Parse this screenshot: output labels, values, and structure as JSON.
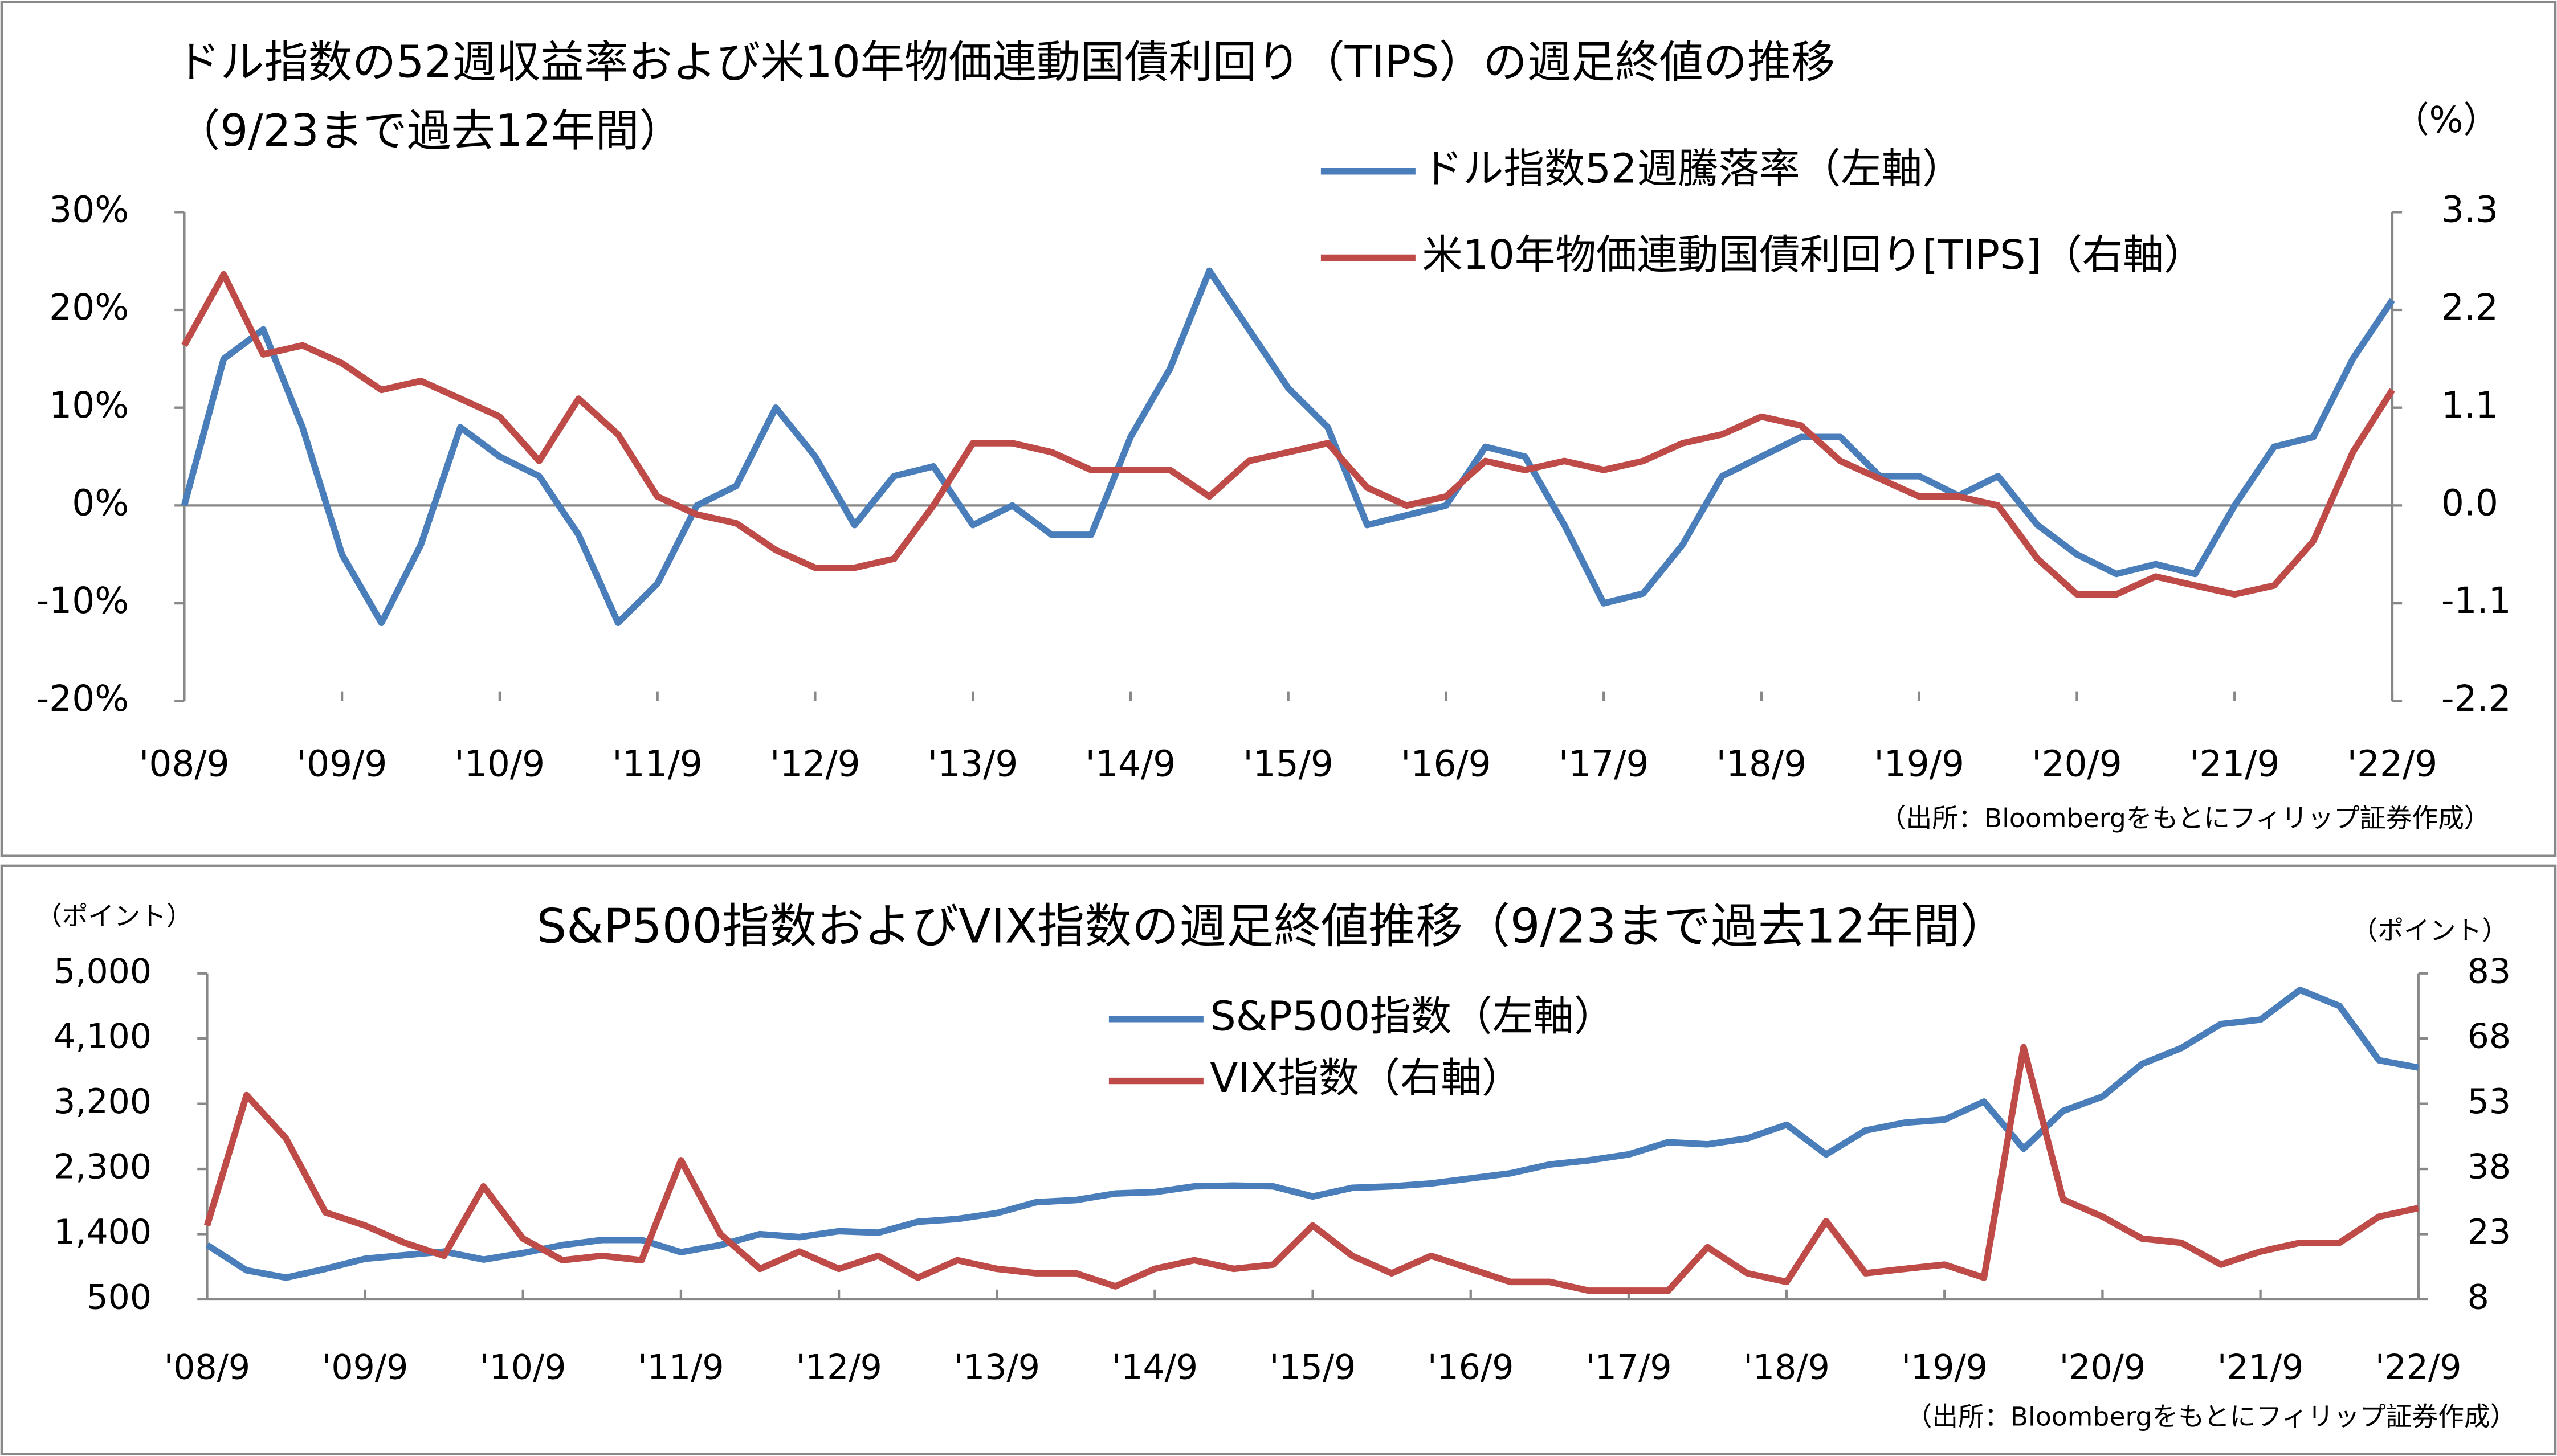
{
  "chart_data": [
    {
      "type": "line",
      "title": "ドル指数の52週収益率および米10年物価連動国債利回り（TIPS）の週足終値の推移",
      "subtitle": "（9/23まで過去12年間）",
      "y2_unit": "（%）",
      "source": "（出所：Bloombergをもとにフィリップ証券作成）",
      "x": [
        "2008-09",
        "2008-12",
        "2009-03",
        "2009-06",
        "2009-09",
        "2009-12",
        "2010-03",
        "2010-06",
        "2010-09",
        "2010-12",
        "2011-03",
        "2011-06",
        "2011-09",
        "2011-12",
        "2012-03",
        "2012-06",
        "2012-09",
        "2012-12",
        "2013-03",
        "2013-06",
        "2013-09",
        "2013-12",
        "2014-03",
        "2014-06",
        "2014-09",
        "2014-12",
        "2015-03",
        "2015-06",
        "2015-09",
        "2015-12",
        "2016-03",
        "2016-06",
        "2016-09",
        "2016-12",
        "2017-03",
        "2017-06",
        "2017-09",
        "2017-12",
        "2018-03",
        "2018-06",
        "2018-09",
        "2018-12",
        "2019-03",
        "2019-06",
        "2019-09",
        "2019-12",
        "2020-03",
        "2020-06",
        "2020-09",
        "2020-12",
        "2021-03",
        "2021-06",
        "2021-09",
        "2021-12",
        "2022-03",
        "2022-06",
        "2022-09"
      ],
      "xlim": [
        "2008-09",
        "2022-09"
      ],
      "xticks": [
        {
          "value": "2008-09",
          "label": "'08/9"
        },
        {
          "value": "2009-09",
          "label": "'09/9"
        },
        {
          "value": "2010-09",
          "label": "'10/9"
        },
        {
          "value": "2011-09",
          "label": "'11/9"
        },
        {
          "value": "2012-09",
          "label": "'12/9"
        },
        {
          "value": "2013-09",
          "label": "'13/9"
        },
        {
          "value": "2014-09",
          "label": "'14/9"
        },
        {
          "value": "2015-09",
          "label": "'15/9"
        },
        {
          "value": "2016-09",
          "label": "'16/9"
        },
        {
          "value": "2017-09",
          "label": "'17/9"
        },
        {
          "value": "2018-09",
          "label": "'18/9"
        },
        {
          "value": "2019-09",
          "label": "'19/9"
        },
        {
          "value": "2020-09",
          "label": "'20/9"
        },
        {
          "value": "2021-09",
          "label": "'21/9"
        },
        {
          "value": "2022-09",
          "label": "'22/9"
        }
      ],
      "ylim": [
        -20,
        30
      ],
      "yticks": [
        {
          "value": -20,
          "label": "-20%"
        },
        {
          "value": -10,
          "label": "-10%"
        },
        {
          "value": 0,
          "label": "0%"
        },
        {
          "value": 10,
          "label": "10%"
        },
        {
          "value": 20,
          "label": "20%"
        },
        {
          "value": 30,
          "label": "30%"
        }
      ],
      "y2lim": [
        -2.2,
        3.3
      ],
      "y2ticks": [
        -2.2,
        -1.1,
        {
          "value": 0,
          "label": "0.0"
        },
        1.1,
        2.2,
        3.3
      ],
      "y2_negative_tick_color": "#e00000",
      "series": [
        {
          "name": "ドル指数52週騰落率（左軸）",
          "color": "#4a7ebb",
          "values": [
            0,
            15,
            18,
            8,
            -5,
            -12,
            -4,
            8,
            5,
            3,
            -3,
            -12,
            -8,
            0,
            2,
            10,
            5,
            -2,
            3,
            4,
            -2,
            0,
            -3,
            -3,
            7,
            14,
            24,
            18,
            12,
            8,
            -2,
            -1,
            0,
            6,
            5,
            -2,
            -10,
            -9,
            -4,
            3,
            5,
            7,
            7,
            3,
            3,
            1,
            3,
            -2,
            -5,
            -7,
            -6,
            -7,
            0,
            6,
            7,
            15,
            21
          ]
        },
        {
          "name": "米10年物価連動国債利回り[TIPS]（右軸）",
          "color": "#be4b48",
          "axis": "y2",
          "values": [
            1.8,
            2.6,
            1.7,
            1.8,
            1.6,
            1.3,
            1.4,
            1.2,
            1.0,
            0.5,
            1.2,
            0.8,
            0.1,
            -0.1,
            -0.2,
            -0.5,
            -0.7,
            -0.7,
            -0.6,
            0.0,
            0.7,
            0.7,
            0.6,
            0.4,
            0.4,
            0.4,
            0.1,
            0.5,
            0.6,
            0.7,
            0.2,
            0.0,
            0.1,
            0.5,
            0.4,
            0.5,
            0.4,
            0.5,
            0.7,
            0.8,
            1.0,
            0.9,
            0.5,
            0.3,
            0.1,
            0.1,
            0.0,
            -0.6,
            -1.0,
            -1.0,
            -0.8,
            -0.9,
            -1.0,
            -0.9,
            -0.4,
            0.6,
            1.3
          ]
        }
      ]
    },
    {
      "type": "line",
      "title": "S&P500指数およびVIX指数の週足終値推移（9/23まで過去12年間）",
      "y_unit": "（ポイント）",
      "y2_unit": "（ポイント）",
      "source": "（出所：Bloombergをもとにフィリップ証券作成）",
      "x": [
        "2008-09",
        "2008-12",
        "2009-03",
        "2009-06",
        "2009-09",
        "2009-12",
        "2010-03",
        "2010-06",
        "2010-09",
        "2010-12",
        "2011-03",
        "2011-06",
        "2011-09",
        "2011-12",
        "2012-03",
        "2012-06",
        "2012-09",
        "2012-12",
        "2013-03",
        "2013-06",
        "2013-09",
        "2013-12",
        "2014-03",
        "2014-06",
        "2014-09",
        "2014-12",
        "2015-03",
        "2015-06",
        "2015-09",
        "2015-12",
        "2016-03",
        "2016-06",
        "2016-09",
        "2016-12",
        "2017-03",
        "2017-06",
        "2017-09",
        "2017-12",
        "2018-03",
        "2018-06",
        "2018-09",
        "2018-12",
        "2019-03",
        "2019-06",
        "2019-09",
        "2019-12",
        "2020-03",
        "2020-06",
        "2020-09",
        "2020-12",
        "2021-03",
        "2021-06",
        "2021-09",
        "2021-12",
        "2022-03",
        "2022-06",
        "2022-09"
      ],
      "xlim": [
        "2008-09",
        "2022-09"
      ],
      "xticks": [
        {
          "value": "2008-09",
          "label": "'08/9"
        },
        {
          "value": "2009-09",
          "label": "'09/9"
        },
        {
          "value": "2010-09",
          "label": "'10/9"
        },
        {
          "value": "2011-09",
          "label": "'11/9"
        },
        {
          "value": "2012-09",
          "label": "'12/9"
        },
        {
          "value": "2013-09",
          "label": "'13/9"
        },
        {
          "value": "2014-09",
          "label": "'14/9"
        },
        {
          "value": "2015-09",
          "label": "'15/9"
        },
        {
          "value": "2016-09",
          "label": "'16/9"
        },
        {
          "value": "2017-09",
          "label": "'17/9"
        },
        {
          "value": "2018-09",
          "label": "'18/9"
        },
        {
          "value": "2019-09",
          "label": "'19/9"
        },
        {
          "value": "2020-09",
          "label": "'20/9"
        },
        {
          "value": "2021-09",
          "label": "'21/9"
        },
        {
          "value": "2022-09",
          "label": "'22/9"
        }
      ],
      "ylim": [
        500,
        5000
      ],
      "yticks": [
        500,
        {
          "value": 1400,
          "label": "1,400"
        },
        {
          "value": 2300,
          "label": "2,300"
        },
        {
          "value": 3200,
          "label": "3,200"
        },
        {
          "value": 4100,
          "label": "4,100"
        },
        {
          "value": 5000,
          "label": "5,000"
        }
      ],
      "y2lim": [
        8,
        83
      ],
      "y2ticks": [
        8,
        23,
        38,
        53,
        68,
        83
      ],
      "series": [
        {
          "name": "S&P500指数（左軸）",
          "color": "#4a7ebb",
          "values": [
            1250,
            900,
            800,
            920,
            1060,
            1110,
            1160,
            1050,
            1140,
            1250,
            1320,
            1320,
            1150,
            1250,
            1400,
            1360,
            1440,
            1420,
            1570,
            1610,
            1690,
            1840,
            1870,
            1960,
            1980,
            2060,
            2070,
            2060,
            1920,
            2040,
            2060,
            2100,
            2170,
            2240,
            2360,
            2420,
            2500,
            2670,
            2640,
            2720,
            2910,
            2500,
            2830,
            2940,
            2980,
            3230,
            2580,
            3100,
            3300,
            3750,
            3970,
            4300,
            4360,
            4770,
            4550,
            3800,
            3700
          ]
        },
        {
          "name": "VIX指数（右軸）",
          "color": "#be4b48",
          "axis": "y2",
          "values": [
            25,
            55,
            45,
            28,
            25,
            21,
            18,
            34,
            22,
            17,
            18,
            17,
            40,
            23,
            15,
            19,
            15,
            18,
            13,
            17,
            15,
            14,
            14,
            11,
            15,
            17,
            15,
            16,
            25,
            18,
            14,
            18,
            15,
            12,
            12,
            10,
            10,
            10,
            20,
            14,
            12,
            26,
            14,
            15,
            16,
            13,
            66,
            31,
            27,
            22,
            21,
            16,
            19,
            21,
            21,
            27,
            29
          ]
        }
      ]
    }
  ]
}
